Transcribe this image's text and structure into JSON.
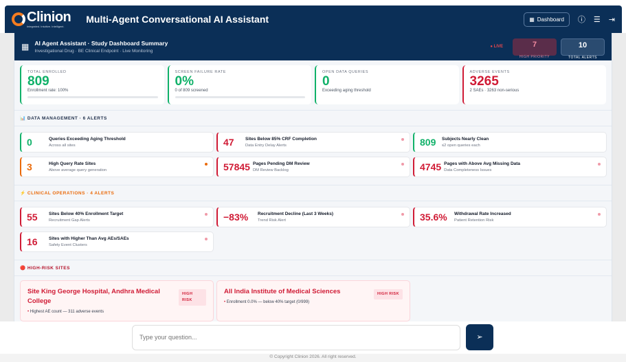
{
  "header": {
    "logo": "Clinion",
    "tagline": "Integrated. Intuitive. Intelligent.",
    "title": "Multi-Agent Conversational AI Assistant",
    "dashboard_label": "Dashboard"
  },
  "summary": {
    "title": "AI Agent Assistant · Study Dashboard Summary",
    "subtitle": "Investigational Drug · BE Clinical Endpoint · Live Monitoring",
    "live": "● LIVE",
    "high_priority": {
      "value": "7",
      "label": "HIGH PRIORITY"
    },
    "total_alerts": {
      "value": "10",
      "label": "TOTAL ALERTS"
    }
  },
  "kpis": [
    {
      "label": "TOTAL ENROLLED",
      "value": "809",
      "desc": "Enrollment rate: 100%"
    },
    {
      "label": "SCREEN FAILURE RATE",
      "value": "0%",
      "desc": "0 of 809 screened"
    },
    {
      "label": "OPEN DATA QUERIES",
      "value": "0",
      "desc": "Exceeding aging threshold"
    },
    {
      "label": "ADVERSE EVENTS",
      "value": "3265",
      "desc": "2 SAEs · 3263 non-serious"
    }
  ],
  "data_management": {
    "heading": "📊 DATA MANAGEMENT · 6 ALERTS",
    "alerts": [
      {
        "value": "0",
        "title": "Queries Exceeding Aging Threshold",
        "sub": "Across all sites"
      },
      {
        "value": "47",
        "title": "Sites Below 85% CRF Completion",
        "sub": "Data Entry Delay Alerts"
      },
      {
        "value": "809",
        "title": "Subjects Nearly Clean",
        "sub": "≤2 open queries each"
      },
      {
        "value": "3",
        "title": "High Query Rate Sites",
        "sub": "Above average query generation"
      },
      {
        "value": "57845",
        "title": "Pages Pending DM Review",
        "sub": "DM Review Backlog"
      },
      {
        "value": "4745",
        "title": "Pages with Above Avg Missing Data",
        "sub": "Data Completeness Issues"
      }
    ]
  },
  "clinical_operations": {
    "heading": "⚡ CLINICAL OPERATIONS · 4 ALERTS",
    "alerts": [
      {
        "value": "55",
        "title": "Sites Below 40% Enrollment Target",
        "sub": "Recruitment Gap Alerts"
      },
      {
        "value": "−83%",
        "title": "Recruitment Decline (Last 3 Weeks)",
        "sub": "Trend Risk Alert"
      },
      {
        "value": "35.6%",
        "title": "Withdrawal Rate Increased",
        "sub": "Patient Retention Risk"
      },
      {
        "value": "16",
        "title": "Sites with Higher Than Avg AEs/SAEs",
        "sub": "Safety Event Clusters"
      }
    ]
  },
  "high_risk": {
    "heading": "🔴 HIGH-RISK SITES",
    "sites": [
      {
        "name": "Site King George Hospital, Andhra Medical College",
        "badge": "HIGH RISK",
        "bullet": "Highest AE count — 311 adverse events"
      },
      {
        "name": "All India Institute of Medical Sciences",
        "badge": "HIGH RISK",
        "bullet": "Enrollment 0.0% — below 40% target (0/999)"
      }
    ]
  },
  "chat": {
    "placeholder": "Type your question...",
    "send_icon": "send-icon"
  },
  "footer": "© Copyright Clinion 2026. All right reserved.",
  "colors": {
    "navy": "#0b2f57",
    "green": "#10b169",
    "red": "#d01b35",
    "orange": "#ea6a0a"
  }
}
